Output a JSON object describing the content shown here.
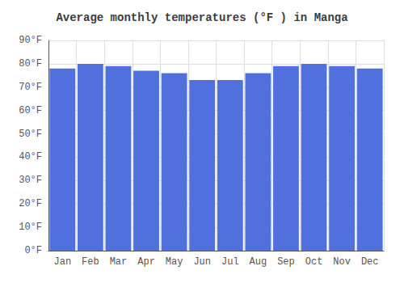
{
  "chart_data": {
    "type": "bar",
    "title": "Average monthly temperatures (°F ) in Manga",
    "categories": [
      "Jan",
      "Feb",
      "Mar",
      "Apr",
      "May",
      "Jun",
      "Jul",
      "Aug",
      "Sep",
      "Oct",
      "Nov",
      "Dec"
    ],
    "values": [
      78,
      80,
      79,
      77,
      76,
      73,
      73,
      76,
      79,
      80,
      79,
      78
    ],
    "ylim": [
      0,
      90
    ],
    "yticks": [
      {
        "value": 0,
        "label": "0°F"
      },
      {
        "value": 10,
        "label": "10°F"
      },
      {
        "value": 20,
        "label": "20°F"
      },
      {
        "value": 30,
        "label": "30°F"
      },
      {
        "value": 40,
        "label": "40°F"
      },
      {
        "value": 50,
        "label": "50°F"
      },
      {
        "value": 60,
        "label": "60°F"
      },
      {
        "value": 70,
        "label": "70°F"
      },
      {
        "value": 80,
        "label": "80°F"
      },
      {
        "value": 90,
        "label": "90°F"
      }
    ],
    "grid": true
  }
}
